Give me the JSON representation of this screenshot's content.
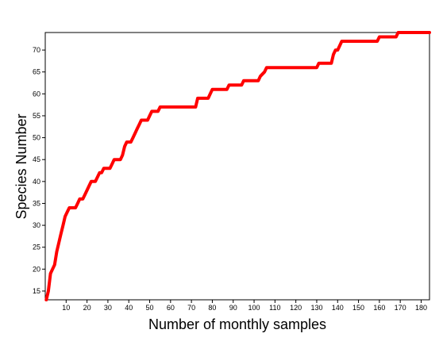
{
  "chart_data": {
    "type": "line",
    "title": "",
    "xlabel": "Number of monthly samples",
    "ylabel": "Species Number",
    "xlim": [
      0,
      184
    ],
    "ylim": [
      13,
      74
    ],
    "x_ticks": [
      10,
      20,
      30,
      40,
      50,
      60,
      70,
      80,
      90,
      100,
      110,
      120,
      130,
      140,
      150,
      160,
      170,
      180
    ],
    "y_ticks": [
      15,
      20,
      25,
      30,
      35,
      40,
      45,
      50,
      55,
      60,
      65,
      70
    ],
    "grid": false,
    "series": [
      {
        "color": "#ff0000",
        "points": [
          [
            0.5,
            13
          ],
          [
            1.5,
            15
          ],
          [
            2.5,
            19
          ],
          [
            3.5,
            20
          ],
          [
            4.5,
            21
          ],
          [
            5.5,
            24
          ],
          [
            6.5,
            26
          ],
          [
            7.5,
            28
          ],
          [
            8.5,
            30
          ],
          [
            9.5,
            32
          ],
          [
            10.5,
            33
          ],
          [
            11.5,
            34
          ],
          [
            14.5,
            34
          ],
          [
            15.5,
            35
          ],
          [
            16.5,
            36
          ],
          [
            18,
            36
          ],
          [
            19,
            37
          ],
          [
            20,
            38
          ],
          [
            21,
            39
          ],
          [
            22,
            40
          ],
          [
            24,
            40
          ],
          [
            25,
            41
          ],
          [
            26,
            42
          ],
          [
            27,
            42
          ],
          [
            28,
            43
          ],
          [
            31,
            43
          ],
          [
            32,
            44
          ],
          [
            33,
            45
          ],
          [
            36,
            45
          ],
          [
            37,
            46
          ],
          [
            38,
            48
          ],
          [
            39,
            49
          ],
          [
            41,
            49
          ],
          [
            42,
            50
          ],
          [
            43,
            51
          ],
          [
            44,
            52
          ],
          [
            45,
            53
          ],
          [
            46,
            54
          ],
          [
            49,
            54
          ],
          [
            50,
            55
          ],
          [
            51,
            56
          ],
          [
            54,
            56
          ],
          [
            55,
            57
          ],
          [
            72,
            57
          ],
          [
            73,
            59
          ],
          [
            78,
            59
          ],
          [
            79,
            60
          ],
          [
            80,
            61
          ],
          [
            87,
            61
          ],
          [
            88,
            62
          ],
          [
            94,
            62
          ],
          [
            95,
            63
          ],
          [
            102,
            63
          ],
          [
            103,
            64
          ],
          [
            105,
            65
          ],
          [
            106,
            66
          ],
          [
            130,
            66
          ],
          [
            131,
            67
          ],
          [
            137,
            67
          ],
          [
            138,
            69
          ],
          [
            139,
            70
          ],
          [
            140,
            70
          ],
          [
            141,
            71
          ],
          [
            142,
            72
          ],
          [
            159,
            72
          ],
          [
            160,
            73
          ],
          [
            168,
            73
          ],
          [
            169,
            74
          ],
          [
            184,
            74
          ]
        ]
      }
    ]
  }
}
